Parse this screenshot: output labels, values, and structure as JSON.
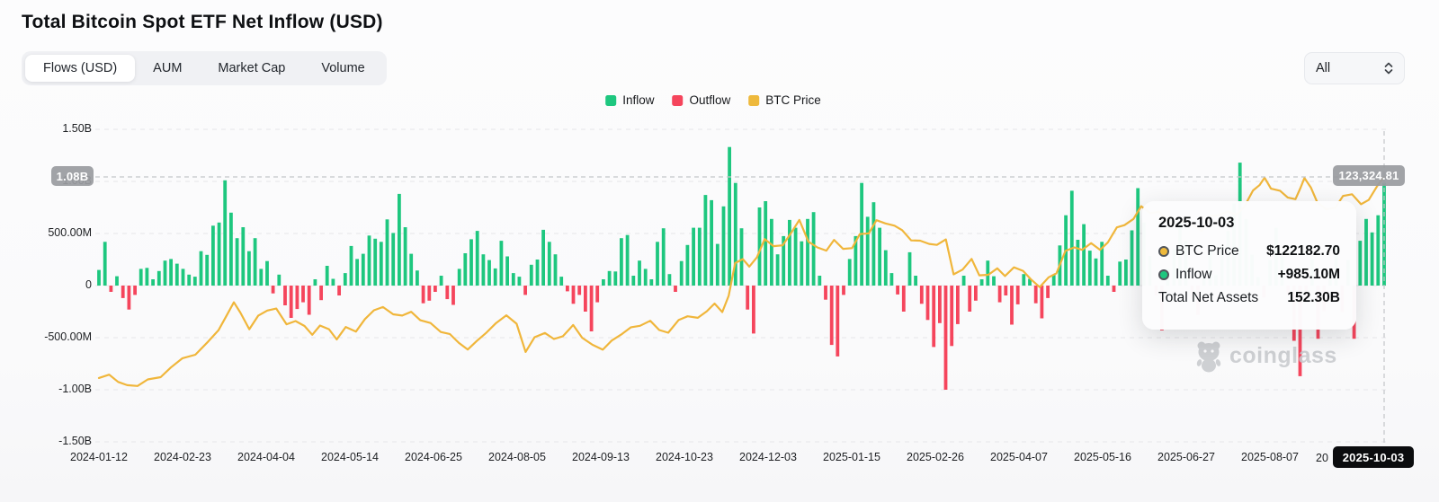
{
  "page": {
    "title": "Total Bitcoin Spot ETF Net Inflow (USD)"
  },
  "tabs": {
    "items": [
      {
        "label": "Flows (USD)",
        "active": true
      },
      {
        "label": "AUM",
        "active": false
      },
      {
        "label": "Market Cap",
        "active": false
      },
      {
        "label": "Volume",
        "active": false
      }
    ]
  },
  "range_select": {
    "value": "All"
  },
  "legend": [
    {
      "label": "Inflow",
      "color": "#1ec77f"
    },
    {
      "label": "Outflow",
      "color": "#f5455c"
    },
    {
      "label": "BTC Price",
      "color": "#eeb93c"
    }
  ],
  "axis": {
    "y_labels": [
      "1.50B",
      "1.00B",
      "500.00M",
      "0",
      "-500.00M",
      "-1.00B",
      "-1.50B"
    ],
    "x_labels": [
      "2024-01-12",
      "2024-02-23",
      "2024-04-04",
      "2024-05-14",
      "2024-06-25",
      "2024-08-05",
      "2024-09-13",
      "2024-10-23",
      "2024-12-03",
      "2025-01-15",
      "2025-02-26",
      "2025-04-07",
      "2025-05-16",
      "2025-06-27",
      "2025-08-07"
    ],
    "clipped_x_label": "20"
  },
  "badges": {
    "y_value": "1.08B",
    "price_value": "123,324.81",
    "x_date": "2025-10-03"
  },
  "tooltip": {
    "date": "2025-10-03",
    "rows": [
      {
        "label": "BTC Price",
        "value": "$122182.70",
        "dot": "#eeb93c"
      },
      {
        "label": "Inflow",
        "value": "+985.10M",
        "dot": "#1ec77f"
      },
      {
        "label": "Total Net Assets",
        "value": "152.30B",
        "dot": null
      }
    ]
  },
  "watermark": {
    "text": "coinglass"
  },
  "chart_data": {
    "type": "bar+line",
    "title": "Total Bitcoin Spot ETF Net Inflow (USD)",
    "x_range": [
      "2024-01-12",
      "2025-10-03"
    ],
    "y_axis_label_unit": "USD",
    "ylim_usd": [
      -1500000000,
      1500000000
    ],
    "grid": "horizontal-dashed",
    "legend_position": "top-center",
    "series_names": [
      "Inflow",
      "Outflow",
      "BTC Price"
    ],
    "colors": {
      "inflow": "#1ec77f",
      "outflow": "#f5455c",
      "btc": "#f0b63b"
    },
    "flows_musd": [
      150,
      420,
      -60,
      90,
      -120,
      -230,
      -90,
      160,
      170,
      60,
      140,
      240,
      255,
      210,
      160,
      105,
      85,
      330,
      295,
      575,
      605,
      1010,
      700,
      455,
      560,
      330,
      455,
      160,
      235,
      -75,
      105,
      -190,
      -310,
      -225,
      -160,
      -280,
      60,
      -140,
      190,
      65,
      -95,
      120,
      380,
      255,
      305,
      480,
      450,
      420,
      635,
      505,
      880,
      560,
      305,
      145,
      -170,
      -145,
      -60,
      95,
      -130,
      -185,
      160,
      310,
      445,
      525,
      300,
      245,
      165,
      430,
      280,
      120,
      85,
      -90,
      200,
      250,
      535,
      420,
      300,
      85,
      -55,
      -175,
      -90,
      -250,
      -440,
      -160,
      60,
      140,
      135,
      455,
      485,
      95,
      240,
      160,
      60,
      420,
      550,
      110,
      -60,
      235,
      390,
      555,
      555,
      870,
      820,
      400,
      760,
      1330,
      985,
      550,
      -230,
      -460,
      750,
      810,
      640,
      300,
      475,
      630,
      555,
      425,
      640,
      705,
      95,
      -135,
      -570,
      -680,
      -90,
      255,
      475,
      985,
      660,
      800,
      555,
      340,
      120,
      -85,
      -250,
      320,
      95,
      -175,
      -330,
      -590,
      -360,
      -1000,
      -580,
      -370,
      95,
      -250,
      -145,
      60,
      240,
      90,
      -160,
      -95,
      -375,
      -180,
      110,
      65,
      -170,
      -315,
      -120,
      105,
      385,
      675,
      910,
      440,
      590,
      335,
      260,
      420,
      95,
      -60,
      230,
      250,
      530,
      935,
      605,
      285,
      -95,
      -430,
      165,
      350,
      590,
      430,
      -130,
      -280,
      110,
      355,
      102,
      385,
      525,
      790,
      1180,
      640,
      297,
      80,
      -115,
      245,
      555,
      277,
      -85,
      -530,
      -870,
      -145,
      253,
      -510,
      -245,
      142,
      383,
      -253,
      246,
      -510,
      430,
      640,
      510,
      675,
      985
    ],
    "btc_price_points_f_kusd": [
      [
        0.0,
        42.8
      ],
      [
        0.008,
        44.1
      ],
      [
        0.015,
        41.2
      ],
      [
        0.022,
        39.9
      ],
      [
        0.03,
        39.6
      ],
      [
        0.038,
        42.2
      ],
      [
        0.048,
        43.1
      ],
      [
        0.056,
        47.0
      ],
      [
        0.065,
        50.7
      ],
      [
        0.075,
        52.1
      ],
      [
        0.085,
        57.4
      ],
      [
        0.093,
        61.9
      ],
      [
        0.1,
        68.4
      ],
      [
        0.105,
        73.1
      ],
      [
        0.11,
        69.0
      ],
      [
        0.117,
        62.3
      ],
      [
        0.124,
        67.8
      ],
      [
        0.131,
        69.8
      ],
      [
        0.138,
        70.6
      ],
      [
        0.146,
        64.3
      ],
      [
        0.153,
        65.6
      ],
      [
        0.16,
        63.6
      ],
      [
        0.166,
        60.1
      ],
      [
        0.172,
        63.8
      ],
      [
        0.179,
        62.3
      ],
      [
        0.185,
        58.2
      ],
      [
        0.192,
        63.2
      ],
      [
        0.2,
        61.4
      ],
      [
        0.207,
        66.4
      ],
      [
        0.214,
        69.9
      ],
      [
        0.221,
        71.2
      ],
      [
        0.229,
        68.3
      ],
      [
        0.236,
        67.8
      ],
      [
        0.243,
        69.3
      ],
      [
        0.25,
        65.9
      ],
      [
        0.258,
        64.8
      ],
      [
        0.266,
        61.2
      ],
      [
        0.273,
        60.4
      ],
      [
        0.28,
        56.9
      ],
      [
        0.287,
        54.2
      ],
      [
        0.294,
        57.6
      ],
      [
        0.301,
        60.7
      ],
      [
        0.309,
        64.8
      ],
      [
        0.317,
        67.9
      ],
      [
        0.325,
        64.5
      ],
      [
        0.332,
        53.2
      ],
      [
        0.339,
        59.1
      ],
      [
        0.347,
        60.8
      ],
      [
        0.354,
        58.4
      ],
      [
        0.361,
        59.5
      ],
      [
        0.369,
        64.0
      ],
      [
        0.376,
        58.9
      ],
      [
        0.384,
        56.1
      ],
      [
        0.392,
        54.1
      ],
      [
        0.399,
        57.8
      ],
      [
        0.407,
        60.4
      ],
      [
        0.414,
        63.1
      ],
      [
        0.421,
        63.7
      ],
      [
        0.429,
        65.7
      ],
      [
        0.436,
        62.0
      ],
      [
        0.443,
        60.9
      ],
      [
        0.451,
        66.0
      ],
      [
        0.458,
        67.5
      ],
      [
        0.466,
        66.9
      ],
      [
        0.473,
        69.5
      ],
      [
        0.479,
        72.6
      ],
      [
        0.485,
        69.2
      ],
      [
        0.49,
        75.7
      ],
      [
        0.495,
        88.8
      ],
      [
        0.501,
        90.4
      ],
      [
        0.506,
        87.4
      ],
      [
        0.512,
        91.1
      ],
      [
        0.518,
        98.4
      ],
      [
        0.525,
        95.6
      ],
      [
        0.532,
        95.9
      ],
      [
        0.539,
        101.2
      ],
      [
        0.545,
        106.1
      ],
      [
        0.552,
        97.4
      ],
      [
        0.559,
        95.1
      ],
      [
        0.566,
        93.8
      ],
      [
        0.572,
        98.1
      ],
      [
        0.579,
        94.5
      ],
      [
        0.586,
        94.8
      ],
      [
        0.592,
        100.4
      ],
      [
        0.599,
        100.7
      ],
      [
        0.605,
        106.0
      ],
      [
        0.612,
        104.7
      ],
      [
        0.619,
        103.8
      ],
      [
        0.625,
        102.0
      ],
      [
        0.632,
        97.9
      ],
      [
        0.639,
        97.8
      ],
      [
        0.646,
        96.5
      ],
      [
        0.652,
        96.1
      ],
      [
        0.659,
        98.3
      ],
      [
        0.665,
        84.3
      ],
      [
        0.672,
        86.2
      ],
      [
        0.679,
        90.5
      ],
      [
        0.685,
        83.9
      ],
      [
        0.692,
        84.1
      ],
      [
        0.699,
        86.7
      ],
      [
        0.705,
        83.6
      ],
      [
        0.712,
        87.1
      ],
      [
        0.719,
        85.7
      ],
      [
        0.725,
        82.4
      ],
      [
        0.732,
        79.2
      ],
      [
        0.739,
        83.1
      ],
      [
        0.745,
        84.7
      ],
      [
        0.752,
        93.7
      ],
      [
        0.759,
        95.1
      ],
      [
        0.765,
        94.1
      ],
      [
        0.772,
        96.8
      ],
      [
        0.779,
        94.1
      ],
      [
        0.785,
        97.1
      ],
      [
        0.792,
        103.1
      ],
      [
        0.798,
        104.0
      ],
      [
        0.805,
        106.5
      ],
      [
        0.811,
        111.6
      ],
      [
        0.818,
        108.8
      ],
      [
        0.825,
        109.4
      ],
      [
        0.832,
        105.5
      ],
      [
        0.838,
        104.1
      ],
      [
        0.845,
        105.9
      ],
      [
        0.852,
        103.8
      ],
      [
        0.858,
        101.7
      ],
      [
        0.865,
        107.7
      ],
      [
        0.872,
        108.1
      ],
      [
        0.878,
        109.5
      ],
      [
        0.885,
        108.2
      ],
      [
        0.891,
        111.2
      ],
      [
        0.898,
        117.9
      ],
      [
        0.903,
        120.0
      ],
      [
        0.907,
        123.0
      ],
      [
        0.912,
        118.6
      ],
      [
        0.919,
        117.8
      ],
      [
        0.925,
        115.1
      ],
      [
        0.931,
        114.4
      ],
      [
        0.935,
        119.0
      ],
      [
        0.938,
        122.9
      ],
      [
        0.943,
        119.1
      ],
      [
        0.948,
        113.1
      ],
      [
        0.955,
        110.3
      ],
      [
        0.962,
        111.0
      ],
      [
        0.968,
        115.7
      ],
      [
        0.975,
        116.4
      ],
      [
        0.982,
        112.4
      ],
      [
        0.988,
        114.1
      ],
      [
        0.995,
        120.0
      ],
      [
        1.0,
        123.3
      ]
    ],
    "last_bar_inflow_musd": 985.1,
    "last_btc_price_usd": 122182.7,
    "crosshair": {
      "y_value": "1.08B",
      "price_value": "123,324.81",
      "date": "2025-10-03"
    }
  }
}
